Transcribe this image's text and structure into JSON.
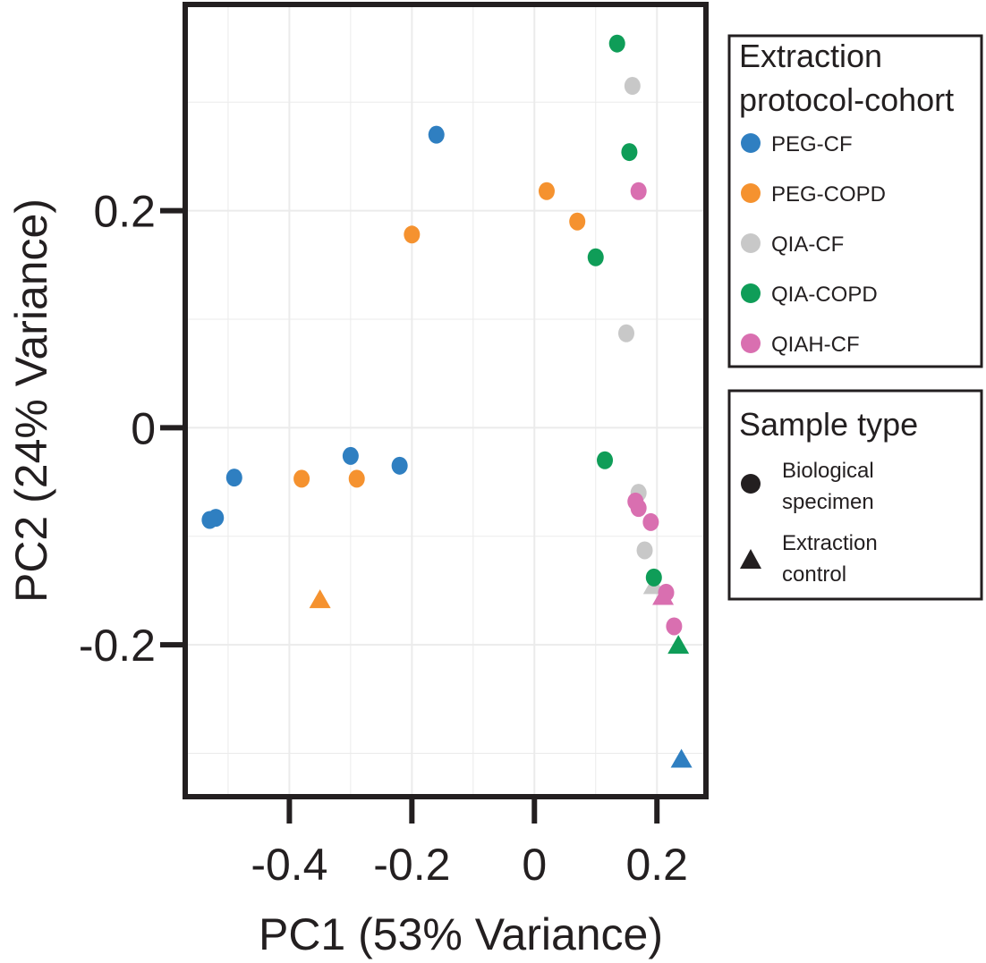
{
  "chart_data": {
    "type": "scatter",
    "xlabel": "PC1 (53% Variance)",
    "ylabel": "PC2 (24% Variance)",
    "xlim": [
      -0.57,
      0.28
    ],
    "ylim": [
      -0.34,
      0.39
    ],
    "x_ticks": [
      -0.4,
      -0.2,
      0,
      0.2
    ],
    "x_tick_labels": [
      "-0.4",
      "-0.2",
      "0",
      "0.2"
    ],
    "y_ticks": [
      -0.2,
      0,
      0.2
    ],
    "y_tick_labels": [
      "-0.2",
      "0",
      "0.2"
    ],
    "grid": true,
    "legend_color": {
      "title_lines": [
        "Extraction",
        "protocol-cohort"
      ],
      "position": "top-right outside"
    },
    "legend_shape": {
      "title": "Sample type",
      "position": "right outside",
      "items": [
        {
          "shape": "circle",
          "lines": [
            "Biological",
            "specimen"
          ]
        },
        {
          "shape": "triangle",
          "lines": [
            "Extraction",
            "control"
          ]
        }
      ]
    },
    "series": [
      {
        "name": "PEG-CF",
        "color": "#2f7fc1",
        "points": [
          {
            "x": -0.16,
            "y": 0.27,
            "shape": "circle"
          },
          {
            "x": -0.3,
            "y": -0.026,
            "shape": "circle"
          },
          {
            "x": -0.22,
            "y": -0.035,
            "shape": "circle"
          },
          {
            "x": -0.49,
            "y": -0.046,
            "shape": "circle"
          },
          {
            "x": -0.52,
            "y": -0.083,
            "shape": "circle"
          },
          {
            "x": -0.53,
            "y": -0.085,
            "shape": "circle"
          },
          {
            "x": 0.24,
            "y": -0.305,
            "shape": "triangle"
          }
        ]
      },
      {
        "name": "PEG-COPD",
        "color": "#f5922f",
        "points": [
          {
            "x": 0.02,
            "y": 0.218,
            "shape": "circle"
          },
          {
            "x": 0.07,
            "y": 0.19,
            "shape": "circle"
          },
          {
            "x": -0.2,
            "y": 0.178,
            "shape": "circle"
          },
          {
            "x": -0.38,
            "y": -0.047,
            "shape": "circle"
          },
          {
            "x": -0.29,
            "y": -0.047,
            "shape": "circle"
          },
          {
            "x": -0.35,
            "y": -0.158,
            "shape": "triangle"
          }
        ]
      },
      {
        "name": "QIA-CF",
        "color": "#c8c8c8",
        "points": [
          {
            "x": 0.16,
            "y": 0.315,
            "shape": "circle"
          },
          {
            "x": 0.15,
            "y": 0.087,
            "shape": "circle"
          },
          {
            "x": 0.17,
            "y": -0.06,
            "shape": "circle"
          },
          {
            "x": 0.18,
            "y": -0.113,
            "shape": "circle"
          },
          {
            "x": 0.195,
            "y": -0.145,
            "shape": "triangle"
          }
        ]
      },
      {
        "name": "QIA-COPD",
        "color": "#0f9d58",
        "points": [
          {
            "x": 0.135,
            "y": 0.354,
            "shape": "circle"
          },
          {
            "x": 0.155,
            "y": 0.254,
            "shape": "circle"
          },
          {
            "x": 0.1,
            "y": 0.157,
            "shape": "circle"
          },
          {
            "x": 0.115,
            "y": -0.03,
            "shape": "circle"
          },
          {
            "x": 0.195,
            "y": -0.138,
            "shape": "circle"
          },
          {
            "x": 0.235,
            "y": -0.2,
            "shape": "triangle"
          }
        ]
      },
      {
        "name": "QIAH-CF",
        "color": "#d96fb0",
        "points": [
          {
            "x": 0.17,
            "y": 0.218,
            "shape": "circle"
          },
          {
            "x": 0.165,
            "y": -0.068,
            "shape": "circle"
          },
          {
            "x": 0.17,
            "y": -0.074,
            "shape": "circle"
          },
          {
            "x": 0.19,
            "y": -0.087,
            "shape": "circle"
          },
          {
            "x": 0.215,
            "y": -0.152,
            "shape": "circle"
          },
          {
            "x": 0.21,
            "y": -0.155,
            "shape": "triangle"
          },
          {
            "x": 0.228,
            "y": -0.183,
            "shape": "circle"
          }
        ]
      }
    ]
  }
}
